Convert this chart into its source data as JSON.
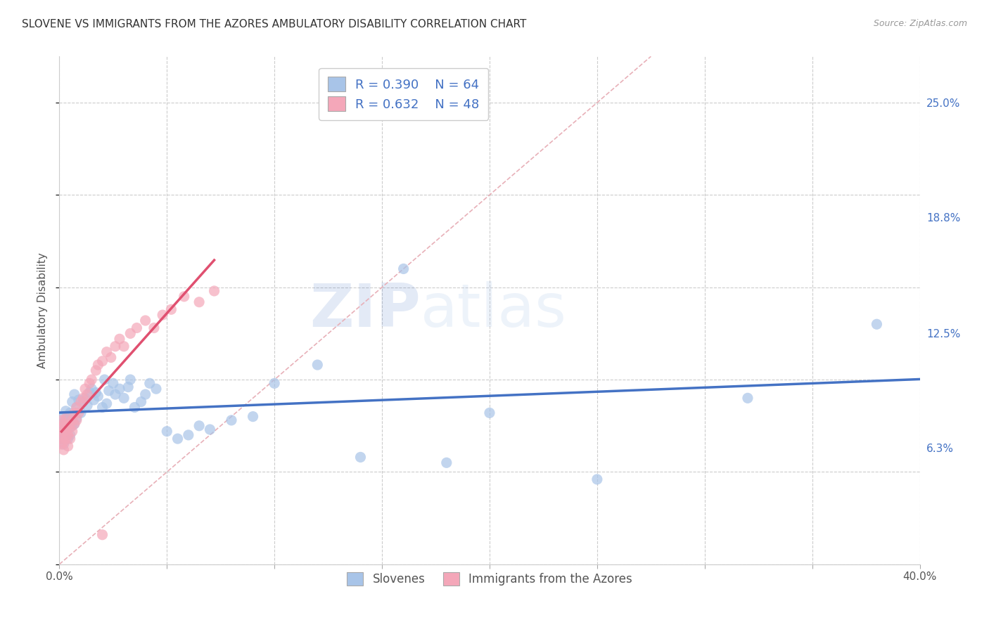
{
  "title": "SLOVENE VS IMMIGRANTS FROM THE AZORES AMBULATORY DISABILITY CORRELATION CHART",
  "source": "Source: ZipAtlas.com",
  "ylabel": "Ambulatory Disability",
  "ytick_labels": [
    "6.3%",
    "12.5%",
    "18.8%",
    "25.0%"
  ],
  "ytick_values": [
    0.063,
    0.125,
    0.188,
    0.25
  ],
  "xlim": [
    0.0,
    0.4
  ],
  "ylim": [
    0.0,
    0.275
  ],
  "legend_series": [
    {
      "label": "Slovenes",
      "R": 0.39,
      "N": 64,
      "color": "#a8c4e8",
      "line_color": "#4472c4"
    },
    {
      "label": "Immigrants from the Azores",
      "R": 0.632,
      "N": 48,
      "color": "#f4a7b9",
      "line_color": "#e05070"
    }
  ],
  "diagonal_color": "#e8b0b8",
  "watermark_zip": "ZIP",
  "watermark_atlas": "atlas",
  "slovenes_x": [
    0.001,
    0.001,
    0.001,
    0.001,
    0.002,
    0.002,
    0.002,
    0.002,
    0.003,
    0.003,
    0.003,
    0.004,
    0.004,
    0.004,
    0.005,
    0.005,
    0.006,
    0.006,
    0.006,
    0.007,
    0.007,
    0.008,
    0.008,
    0.009,
    0.01,
    0.011,
    0.012,
    0.013,
    0.014,
    0.015,
    0.016,
    0.017,
    0.018,
    0.02,
    0.021,
    0.022,
    0.023,
    0.025,
    0.026,
    0.028,
    0.03,
    0.032,
    0.033,
    0.035,
    0.038,
    0.04,
    0.042,
    0.045,
    0.05,
    0.055,
    0.06,
    0.065,
    0.07,
    0.08,
    0.09,
    0.1,
    0.12,
    0.14,
    0.16,
    0.18,
    0.2,
    0.25,
    0.32,
    0.38
  ],
  "slovenes_y": [
    0.068,
    0.071,
    0.073,
    0.076,
    0.065,
    0.07,
    0.075,
    0.08,
    0.072,
    0.078,
    0.083,
    0.068,
    0.074,
    0.079,
    0.07,
    0.082,
    0.075,
    0.08,
    0.088,
    0.076,
    0.092,
    0.079,
    0.085,
    0.089,
    0.082,
    0.088,
    0.09,
    0.086,
    0.093,
    0.095,
    0.089,
    0.093,
    0.091,
    0.085,
    0.1,
    0.087,
    0.094,
    0.098,
    0.092,
    0.095,
    0.09,
    0.096,
    0.1,
    0.085,
    0.088,
    0.092,
    0.098,
    0.095,
    0.072,
    0.068,
    0.07,
    0.075,
    0.073,
    0.078,
    0.08,
    0.098,
    0.108,
    0.058,
    0.16,
    0.055,
    0.082,
    0.046,
    0.09,
    0.13
  ],
  "azores_x": [
    0.001,
    0.001,
    0.001,
    0.001,
    0.001,
    0.002,
    0.002,
    0.002,
    0.002,
    0.003,
    0.003,
    0.003,
    0.004,
    0.004,
    0.004,
    0.005,
    0.005,
    0.006,
    0.006,
    0.007,
    0.007,
    0.008,
    0.008,
    0.009,
    0.01,
    0.011,
    0.012,
    0.013,
    0.014,
    0.015,
    0.017,
    0.018,
    0.02,
    0.022,
    0.024,
    0.026,
    0.028,
    0.03,
    0.033,
    0.036,
    0.04,
    0.044,
    0.048,
    0.052,
    0.058,
    0.065,
    0.072,
    0.02
  ],
  "azores_y": [
    0.065,
    0.068,
    0.071,
    0.074,
    0.078,
    0.062,
    0.066,
    0.072,
    0.076,
    0.068,
    0.073,
    0.079,
    0.064,
    0.07,
    0.075,
    0.068,
    0.074,
    0.072,
    0.078,
    0.076,
    0.082,
    0.078,
    0.085,
    0.082,
    0.088,
    0.09,
    0.095,
    0.092,
    0.098,
    0.1,
    0.105,
    0.108,
    0.11,
    0.115,
    0.112,
    0.118,
    0.122,
    0.118,
    0.125,
    0.128,
    0.132,
    0.128,
    0.135,
    0.138,
    0.145,
    0.142,
    0.148,
    0.016
  ]
}
